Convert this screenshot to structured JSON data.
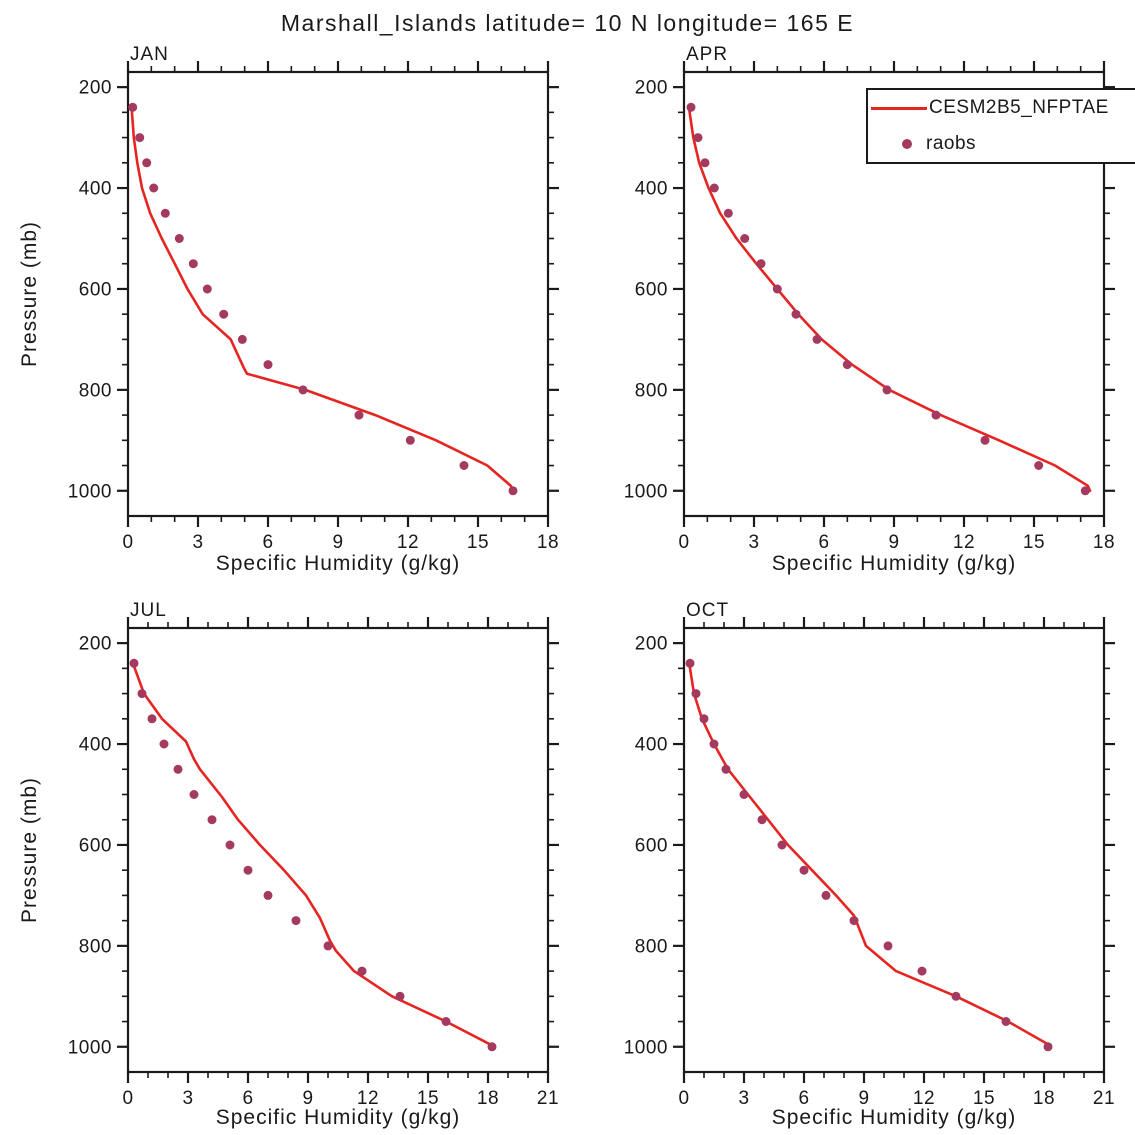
{
  "title": "Marshall_Islands  latitude= 10 N longitude= 165 E",
  "legend": {
    "line_label": "CESM2B5_NFPTAE",
    "marker_label": "raobs"
  },
  "colors": {
    "line": "#e52521",
    "marker": "#a43a60",
    "axis": "#1a1a1a"
  },
  "chart_data": {
    "type": "line",
    "xlabel": "Specific Humidity (g/kg)",
    "ylabel": "Pressure (mb)",
    "y_axis": {
      "ticks": [
        200,
        400,
        600,
        800,
        1000
      ],
      "minor_step": 50,
      "range": [
        170,
        1050
      ],
      "inverted": true
    },
    "panels": [
      {
        "title": "JAN",
        "xlim": [
          0,
          18
        ],
        "xticks": [
          0,
          3,
          6,
          9,
          12,
          15,
          18
        ],
        "x_minor_step": 1,
        "series": [
          {
            "name": "CESM2B5_NFPTAE",
            "type": "line",
            "points": [
              [
                0.15,
                237
              ],
              [
                0.25,
                300
              ],
              [
                0.4,
                350
              ],
              [
                0.6,
                400
              ],
              [
                0.95,
                450
              ],
              [
                1.45,
                500
              ],
              [
                2.0,
                550
              ],
              [
                2.55,
                600
              ],
              [
                3.2,
                650
              ],
              [
                4.4,
                700
              ],
              [
                4.95,
                755
              ],
              [
                5.1,
                768
              ],
              [
                7.6,
                800
              ],
              [
                10.6,
                850
              ],
              [
                13.2,
                900
              ],
              [
                15.4,
                950
              ],
              [
                16.4,
                990
              ],
              [
                16.5,
                1000
              ]
            ]
          },
          {
            "name": "raobs",
            "type": "scatter",
            "points": [
              [
                0.2,
                240
              ],
              [
                0.5,
                300
              ],
              [
                0.8,
                350
              ],
              [
                1.1,
                400
              ],
              [
                1.6,
                450
              ],
              [
                2.2,
                500
              ],
              [
                2.8,
                550
              ],
              [
                3.4,
                600
              ],
              [
                4.1,
                650
              ],
              [
                4.9,
                700
              ],
              [
                6.0,
                750
              ],
              [
                7.5,
                800
              ],
              [
                9.9,
                850
              ],
              [
                12.1,
                900
              ],
              [
                14.4,
                950
              ],
              [
                16.5,
                1000
              ]
            ]
          }
        ]
      },
      {
        "title": "APR",
        "xlim": [
          0,
          18
        ],
        "xticks": [
          0,
          3,
          6,
          9,
          12,
          15,
          18
        ],
        "x_minor_step": 1,
        "series": [
          {
            "name": "CESM2B5_NFPTAE",
            "type": "line",
            "points": [
              [
                0.2,
                237
              ],
              [
                0.4,
                300
              ],
              [
                0.65,
                350
              ],
              [
                1.05,
                400
              ],
              [
                1.55,
                450
              ],
              [
                2.25,
                500
              ],
              [
                3.1,
                550
              ],
              [
                4.0,
                600
              ],
              [
                4.9,
                650
              ],
              [
                5.9,
                700
              ],
              [
                7.2,
                750
              ],
              [
                8.8,
                800
              ],
              [
                11.0,
                850
              ],
              [
                13.5,
                900
              ],
              [
                15.9,
                950
              ],
              [
                17.3,
                990
              ],
              [
                17.4,
                1000
              ]
            ]
          },
          {
            "name": "raobs",
            "type": "scatter",
            "points": [
              [
                0.3,
                240
              ],
              [
                0.6,
                300
              ],
              [
                0.9,
                350
              ],
              [
                1.3,
                400
              ],
              [
                1.9,
                450
              ],
              [
                2.6,
                500
              ],
              [
                3.3,
                550
              ],
              [
                4.0,
                600
              ],
              [
                4.8,
                650
              ],
              [
                5.7,
                700
              ],
              [
                7.0,
                750
              ],
              [
                8.7,
                800
              ],
              [
                10.8,
                850
              ],
              [
                12.9,
                900
              ],
              [
                15.2,
                950
              ],
              [
                17.2,
                1000
              ]
            ]
          }
        ]
      },
      {
        "title": "JUL",
        "xlim": [
          0,
          21
        ],
        "xticks": [
          0,
          3,
          6,
          9,
          12,
          15,
          18,
          21
        ],
        "x_minor_step": 1,
        "series": [
          {
            "name": "CESM2B5_NFPTAE",
            "type": "line",
            "points": [
              [
                0.2,
                235
              ],
              [
                0.8,
                300
              ],
              [
                1.7,
                350
              ],
              [
                2.9,
                395
              ],
              [
                3.3,
                430
              ],
              [
                3.6,
                450
              ],
              [
                4.7,
                505
              ],
              [
                5.5,
                550
              ],
              [
                6.6,
                600
              ],
              [
                7.8,
                650
              ],
              [
                8.9,
                700
              ],
              [
                9.6,
                745
              ],
              [
                10.1,
                790
              ],
              [
                10.4,
                810
              ],
              [
                11.3,
                850
              ],
              [
                13.2,
                900
              ],
              [
                15.9,
                950
              ],
              [
                18.1,
                995
              ],
              [
                18.3,
                1000
              ]
            ]
          },
          {
            "name": "raobs",
            "type": "scatter",
            "points": [
              [
                0.3,
                240
              ],
              [
                0.7,
                300
              ],
              [
                1.2,
                350
              ],
              [
                1.8,
                400
              ],
              [
                2.5,
                450
              ],
              [
                3.3,
                500
              ],
              [
                4.2,
                550
              ],
              [
                5.1,
                600
              ],
              [
                6.0,
                650
              ],
              [
                7.0,
                700
              ],
              [
                8.4,
                750
              ],
              [
                10.0,
                800
              ],
              [
                11.7,
                850
              ],
              [
                13.6,
                900
              ],
              [
                15.9,
                950
              ],
              [
                18.2,
                1000
              ]
            ]
          }
        ]
      },
      {
        "title": "OCT",
        "xlim": [
          0,
          21
        ],
        "xticks": [
          0,
          3,
          6,
          9,
          12,
          15,
          18,
          21
        ],
        "x_minor_step": 1,
        "series": [
          {
            "name": "CESM2B5_NFPTAE",
            "type": "line",
            "points": [
              [
                0.25,
                237
              ],
              [
                0.5,
                300
              ],
              [
                0.9,
                350
              ],
              [
                1.5,
                400
              ],
              [
                2.2,
                450
              ],
              [
                3.2,
                500
              ],
              [
                4.2,
                550
              ],
              [
                5.2,
                600
              ],
              [
                6.4,
                650
              ],
              [
                7.6,
                700
              ],
              [
                8.5,
                740
              ],
              [
                8.8,
                770
              ],
              [
                9.1,
                800
              ],
              [
                10.6,
                850
              ],
              [
                13.6,
                900
              ],
              [
                16.2,
                950
              ],
              [
                18.2,
                995
              ],
              [
                18.3,
                1000
              ]
            ]
          },
          {
            "name": "raobs",
            "type": "scatter",
            "points": [
              [
                0.3,
                240
              ],
              [
                0.6,
                300
              ],
              [
                1.0,
                350
              ],
              [
                1.5,
                400
              ],
              [
                2.1,
                450
              ],
              [
                3.0,
                500
              ],
              [
                3.9,
                550
              ],
              [
                4.9,
                600
              ],
              [
                6.0,
                650
              ],
              [
                7.1,
                700
              ],
              [
                8.5,
                750
              ],
              [
                10.2,
                800
              ],
              [
                11.9,
                850
              ],
              [
                13.6,
                900
              ],
              [
                16.1,
                950
              ],
              [
                18.2,
                1000
              ]
            ]
          }
        ]
      }
    ]
  }
}
